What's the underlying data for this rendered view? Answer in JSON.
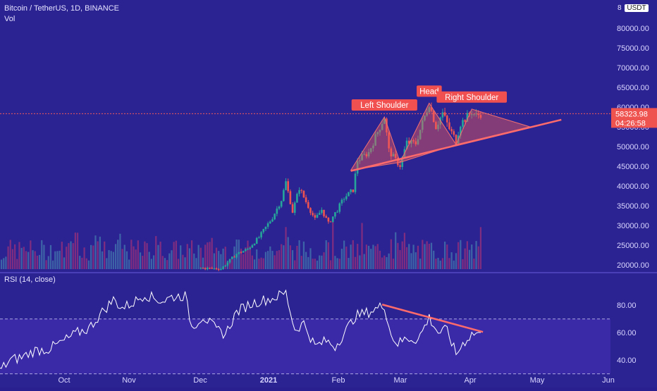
{
  "header": {
    "symbol": "Bitcoin / TetherUS, 1D, BINANCE",
    "vol_label": "Vol",
    "currency": "USDT",
    "currency_prefix": "8"
  },
  "rsi_label": "RSI (14, close)",
  "price_badge": {
    "price": "58323.98",
    "countdown": "04:26:58"
  },
  "colors": {
    "bg": "#2c2393",
    "rsi_band": "#3a2aa8",
    "up": "#26a69a",
    "down": "#ef5350",
    "pattern": "#f05a5a",
    "rsi_line": "#ffffff"
  },
  "chart_data": [
    {
      "type": "candlestick",
      "title": "Bitcoin / TetherUS, 1D, BINANCE",
      "ylabel": "USDT",
      "ylim": [
        19000,
        86000
      ],
      "y_ticks": [
        20000,
        25000,
        30000,
        35000,
        40000,
        45000,
        50000,
        55000,
        60000,
        65000,
        70000,
        75000,
        80000
      ],
      "y_tick_labels": [
        "20000.00",
        "25000.00",
        "30000.00",
        "35000.00",
        "40000.00",
        "45000.00",
        "50000.00",
        "55000.00",
        "60000.00",
        "65000.00",
        "70000.00",
        "75000.00",
        "80000.00"
      ],
      "x_tick_labels": [
        "Oct",
        "Nov",
        "Dec",
        "2021",
        "Feb",
        "Mar",
        "Apr",
        "May",
        "Jun"
      ],
      "close_path": [
        {
          "date": "2020-12-01",
          "close": 19200
        },
        {
          "date": "2020-12-10",
          "close": 19000
        },
        {
          "date": "2020-12-17",
          "close": 22800
        },
        {
          "date": "2020-12-22",
          "close": 24000
        },
        {
          "date": "2020-12-27",
          "close": 27000
        },
        {
          "date": "2021-01-02",
          "close": 32000
        },
        {
          "date": "2021-01-06",
          "close": 36500
        },
        {
          "date": "2021-01-08",
          "close": 41000
        },
        {
          "date": "2021-01-11",
          "close": 33500
        },
        {
          "date": "2021-01-14",
          "close": 39500
        },
        {
          "date": "2021-01-17",
          "close": 36000
        },
        {
          "date": "2021-01-21",
          "close": 31500
        },
        {
          "date": "2021-01-24",
          "close": 34000
        },
        {
          "date": "2021-01-27",
          "close": 30500
        },
        {
          "date": "2021-01-31",
          "close": 34000
        },
        {
          "date": "2021-02-03",
          "close": 37000
        },
        {
          "date": "2021-02-07",
          "close": 39000
        },
        {
          "date": "2021-02-09",
          "close": 46500
        },
        {
          "date": "2021-02-14",
          "close": 48500
        },
        {
          "date": "2021-02-19",
          "close": 55000
        },
        {
          "date": "2021-02-21",
          "close": 57500
        },
        {
          "date": "2021-02-23",
          "close": 49000
        },
        {
          "date": "2021-02-26",
          "close": 46500
        },
        {
          "date": "2021-02-28",
          "close": 45200
        },
        {
          "date": "2021-03-03",
          "close": 51000
        },
        {
          "date": "2021-03-07",
          "close": 50800
        },
        {
          "date": "2021-03-10",
          "close": 56000
        },
        {
          "date": "2021-03-13",
          "close": 61000
        },
        {
          "date": "2021-03-16",
          "close": 55000
        },
        {
          "date": "2021-03-19",
          "close": 58500
        },
        {
          "date": "2021-03-22",
          "close": 54500
        },
        {
          "date": "2021-03-25",
          "close": 51500
        },
        {
          "date": "2021-03-27",
          "close": 55800
        },
        {
          "date": "2021-04-01",
          "close": 58800
        },
        {
          "date": "2021-04-03",
          "close": 57800
        },
        {
          "date": "2021-04-05",
          "close": 58300
        }
      ],
      "volume_label": "Vol",
      "annotations": [
        {
          "text": "Left Shoulder",
          "anchor_date": "2021-02-21",
          "value": 57500
        },
        {
          "text": "Head",
          "anchor_date": "2021-03-13",
          "value": 61000
        },
        {
          "text": "Right Shoulder",
          "anchor_date": "2021-04-01",
          "value": 59500
        }
      ],
      "neckline": {
        "from": {
          "date": "2021-02-06",
          "value": 43800
        },
        "to": {
          "date": "2021-05-11",
          "value": 56800
        }
      },
      "current_price": 58323.98
    },
    {
      "type": "line",
      "title": "RSI (14, close)",
      "ylim": [
        28,
        92
      ],
      "y_ticks": [
        40,
        60,
        80
      ],
      "y_tick_labels": [
        "40.00",
        "60.00",
        "80.00"
      ],
      "band": [
        30,
        70
      ],
      "series": [
        {
          "values": [
            {
              "date": "2020-09-02",
              "v": 32
            },
            {
              "date": "2020-09-07",
              "v": 40
            },
            {
              "date": "2020-09-12",
              "v": 42
            },
            {
              "date": "2020-09-18",
              "v": 47
            },
            {
              "date": "2020-09-24",
              "v": 48
            },
            {
              "date": "2020-10-01",
              "v": 54
            },
            {
              "date": "2020-10-07",
              "v": 60
            },
            {
              "date": "2020-10-12",
              "v": 63
            },
            {
              "date": "2020-10-18",
              "v": 75
            },
            {
              "date": "2020-10-23",
              "v": 84
            },
            {
              "date": "2020-10-27",
              "v": 78
            },
            {
              "date": "2020-11-01",
              "v": 82
            },
            {
              "date": "2020-11-06",
              "v": 88
            },
            {
              "date": "2020-11-10",
              "v": 85
            },
            {
              "date": "2020-11-14",
              "v": 83
            },
            {
              "date": "2020-11-18",
              "v": 86
            },
            {
              "date": "2020-11-24",
              "v": 87
            },
            {
              "date": "2020-11-27",
              "v": 64
            },
            {
              "date": "2020-12-02",
              "v": 72
            },
            {
              "date": "2020-12-08",
              "v": 62
            },
            {
              "date": "2020-12-12",
              "v": 59
            },
            {
              "date": "2020-12-17",
              "v": 75
            },
            {
              "date": "2020-12-22",
              "v": 80
            },
            {
              "date": "2020-12-27",
              "v": 83
            },
            {
              "date": "2021-01-02",
              "v": 85
            },
            {
              "date": "2021-01-08",
              "v": 89
            },
            {
              "date": "2021-01-12",
              "v": 62
            },
            {
              "date": "2021-01-16",
              "v": 67
            },
            {
              "date": "2021-01-21",
              "v": 50
            },
            {
              "date": "2021-01-26",
              "v": 54
            },
            {
              "date": "2021-01-30",
              "v": 50
            },
            {
              "date": "2021-02-04",
              "v": 62
            },
            {
              "date": "2021-02-08",
              "v": 72
            },
            {
              "date": "2021-02-14",
              "v": 75
            },
            {
              "date": "2021-02-21",
              "v": 80
            },
            {
              "date": "2021-02-24",
              "v": 58
            },
            {
              "date": "2021-02-27",
              "v": 52
            },
            {
              "date": "2021-03-03",
              "v": 56
            },
            {
              "date": "2021-03-08",
              "v": 55
            },
            {
              "date": "2021-03-13",
              "v": 71
            },
            {
              "date": "2021-03-17",
              "v": 60
            },
            {
              "date": "2021-03-21",
              "v": 62
            },
            {
              "date": "2021-03-25",
              "v": 44
            },
            {
              "date": "2021-03-28",
              "v": 52
            },
            {
              "date": "2021-04-01",
              "v": 59
            },
            {
              "date": "2021-04-05",
              "v": 60
            }
          ]
        }
      ],
      "trendline": {
        "from": {
          "date": "2021-02-20",
          "value": 80.5
        },
        "to": {
          "date": "2021-04-06",
          "value": 60.5
        }
      }
    }
  ]
}
